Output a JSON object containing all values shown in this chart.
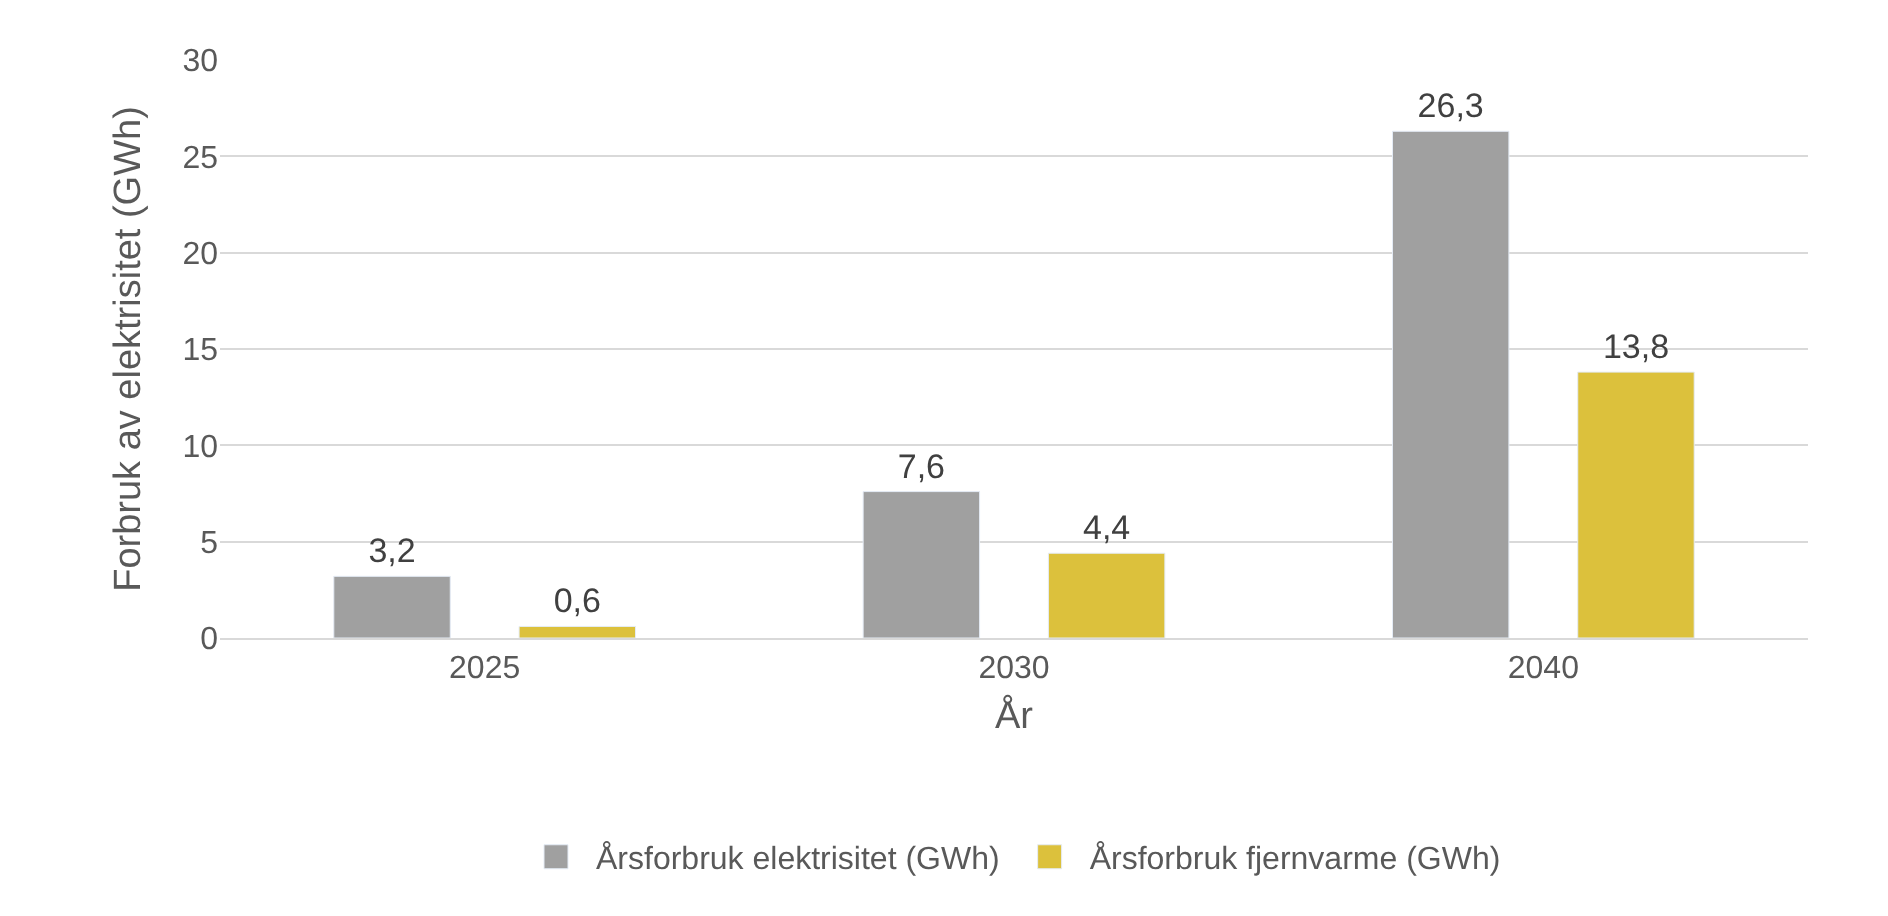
{
  "chart_data": {
    "type": "bar",
    "xlabel": "År",
    "ylabel": "Forbruk av elektrisitet (GWh)",
    "categories": [
      "2025",
      "2030",
      "2040"
    ],
    "series": [
      {
        "name": "Årsforbruk elektrisitet (GWh)",
        "color": "#a0a0a0",
        "values": [
          3.2,
          7.6,
          26.3
        ],
        "value_labels": [
          "3,2",
          "7,6",
          "26,3"
        ]
      },
      {
        "name": "Årsforbruk fjernvarme (GWh)",
        "color": "#dcc13c",
        "values": [
          0.6,
          4.4,
          13.8
        ],
        "value_labels": [
          "0,6",
          "4,4",
          "13,8"
        ]
      }
    ],
    "ylim": [
      0,
      30
    ],
    "yticks": [
      0,
      5,
      10,
      15,
      20,
      25,
      30
    ],
    "grid": "y",
    "legend": "bottom"
  }
}
